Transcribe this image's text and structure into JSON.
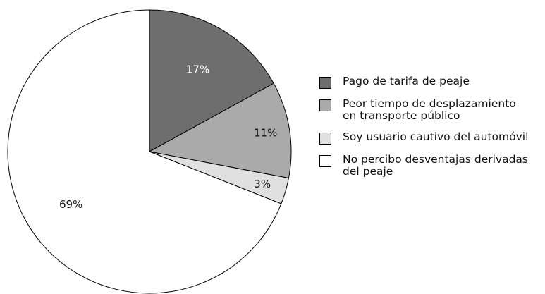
{
  "chart_data": {
    "type": "pie",
    "categories": [
      "Pago de tarifa de peaje",
      "Peor tiempo de desplazamiento\nen transporte público",
      "Soy usuario cautivo del automóvil",
      "No percibo desventajas derivadas\ndel peaje"
    ],
    "values": [
      17,
      11,
      3,
      69
    ],
    "value_labels": [
      "17%",
      "11%",
      "3%",
      "69%"
    ],
    "colors": [
      "#6e6e6e",
      "#aaaaaa",
      "#e0e0e0",
      "#ffffff"
    ],
    "legend": "right"
  }
}
